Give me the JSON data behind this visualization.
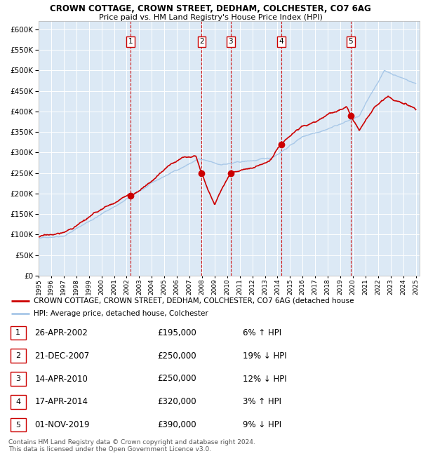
{
  "title": "CROWN COTTAGE, CROWN STREET, DEDHAM, COLCHESTER, CO7 6AG",
  "subtitle": "Price paid vs. HM Land Registry's House Price Index (HPI)",
  "ylim": [
    0,
    620000
  ],
  "yticks": [
    0,
    50000,
    100000,
    150000,
    200000,
    250000,
    300000,
    350000,
    400000,
    450000,
    500000,
    550000,
    600000
  ],
  "bg_color": "#dce9f5",
  "grid_color": "#ffffff",
  "red_line_color": "#cc0000",
  "blue_line_color": "#a8c8e8",
  "dashed_line_color": "#cc0000",
  "sale_points": [
    {
      "year": 2002.32,
      "price": 195000,
      "label": "1"
    },
    {
      "year": 2007.97,
      "price": 250000,
      "label": "2"
    },
    {
      "year": 2010.28,
      "price": 250000,
      "label": "3"
    },
    {
      "year": 2014.29,
      "price": 320000,
      "label": "4"
    },
    {
      "year": 2019.83,
      "price": 390000,
      "label": "5"
    }
  ],
  "table_rows": [
    {
      "num": "1",
      "date": "26-APR-2002",
      "price": "£195,000",
      "hpi": "6% ↑ HPI"
    },
    {
      "num": "2",
      "date": "21-DEC-2007",
      "price": "£250,000",
      "hpi": "19% ↓ HPI"
    },
    {
      "num": "3",
      "date": "14-APR-2010",
      "price": "£250,000",
      "hpi": "12% ↓ HPI"
    },
    {
      "num": "4",
      "date": "17-APR-2014",
      "price": "£320,000",
      "hpi": "3% ↑ HPI"
    },
    {
      "num": "5",
      "date": "01-NOV-2019",
      "price": "£390,000",
      "hpi": "9% ↓ HPI"
    }
  ],
  "footer": "Contains HM Land Registry data © Crown copyright and database right 2024.\nThis data is licensed under the Open Government Licence v3.0.",
  "legend_red": "CROWN COTTAGE, CROWN STREET, DEDHAM, COLCHESTER, CO7 6AG (detached house",
  "legend_blue": "HPI: Average price, detached house, Colchester"
}
